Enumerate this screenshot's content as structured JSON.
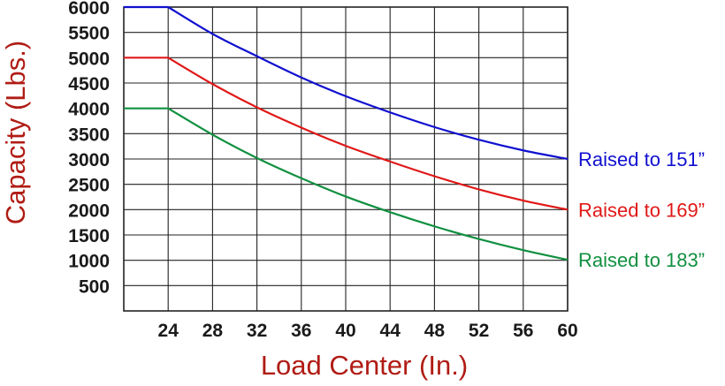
{
  "chart_data": {
    "type": "line",
    "xlabel": "Load Center (In.)",
    "ylabel": "Capacity (Lbs.)",
    "x_ticks": [
      24,
      28,
      32,
      36,
      40,
      44,
      48,
      52,
      56,
      60
    ],
    "y_ticks": [
      500,
      1000,
      1500,
      2000,
      2500,
      3000,
      3500,
      4000,
      4500,
      5000,
      5500,
      6000
    ],
    "xlim": [
      20,
      60
    ],
    "ylim": [
      0,
      6000
    ],
    "grid": true,
    "legend": "labels at right end of each line",
    "series": [
      {
        "name": "Raised to 151”",
        "color": "#1010d0",
        "x": [
          20,
          24,
          28,
          32,
          36,
          40,
          44,
          48,
          52,
          56,
          60
        ],
        "y": [
          6000,
          6000,
          5470,
          5030,
          4610,
          4240,
          3920,
          3630,
          3380,
          3170,
          3000
        ]
      },
      {
        "name": "Raised to 169”",
        "color": "#e01818",
        "x": [
          20,
          24,
          28,
          32,
          36,
          40,
          44,
          48,
          52,
          56,
          60
        ],
        "y": [
          5000,
          5000,
          4480,
          4020,
          3620,
          3260,
          2950,
          2660,
          2400,
          2180,
          2000
        ]
      },
      {
        "name": "Raised to 183”",
        "color": "#119040",
        "x": [
          20,
          24,
          28,
          32,
          36,
          40,
          44,
          48,
          52,
          56,
          60
        ],
        "y": [
          4000,
          4000,
          3480,
          3020,
          2620,
          2260,
          1950,
          1670,
          1420,
          1200,
          1010
        ]
      }
    ]
  }
}
